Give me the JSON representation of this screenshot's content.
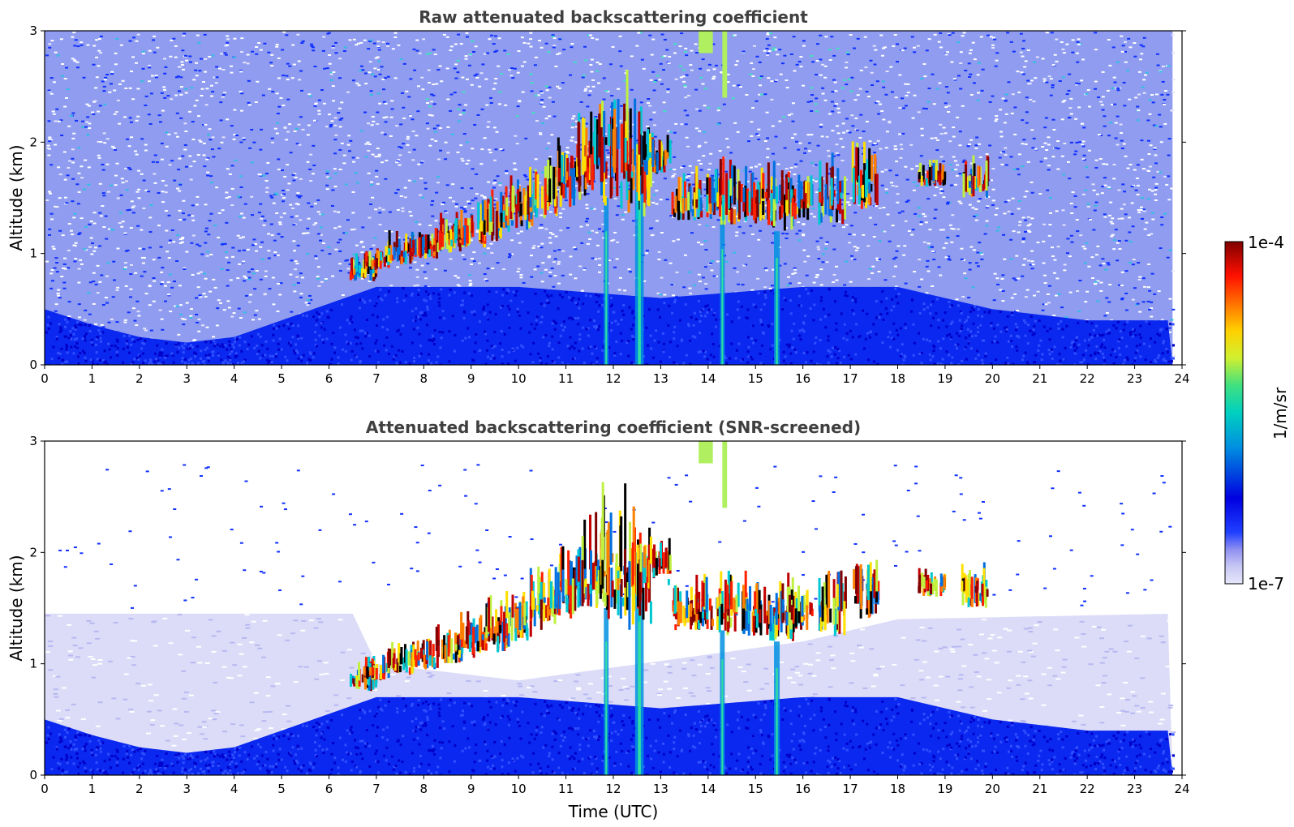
{
  "chart_data": [
    {
      "type": "heatmap",
      "title": "Raw attenuated backscattering coefficient",
      "xlabel": "",
      "ylabel": "Altitude (km)",
      "xlim": [
        0,
        24
      ],
      "ylim": [
        0,
        3
      ],
      "x_ticks": [
        0,
        1,
        2,
        3,
        4,
        5,
        6,
        7,
        8,
        9,
        10,
        11,
        12,
        13,
        14,
        15,
        16,
        17,
        18,
        19,
        20,
        21,
        22,
        23,
        24
      ],
      "y_ticks": [
        0,
        1,
        2,
        3
      ],
      "x_data_end": 23.8,
      "noise": true,
      "boundary_layer": [
        [
          0,
          0.5
        ],
        [
          1,
          0.36
        ],
        [
          2,
          0.25
        ],
        [
          3,
          0.2
        ],
        [
          4,
          0.25
        ],
        [
          5,
          0.4
        ],
        [
          6,
          0.55
        ],
        [
          7,
          0.7
        ],
        [
          10,
          0.7
        ],
        [
          13,
          0.6
        ],
        [
          16,
          0.7
        ],
        [
          18,
          0.7
        ],
        [
          20,
          0.5
        ],
        [
          22,
          0.4
        ],
        [
          23.8,
          0.4
        ]
      ],
      "cloud_layer": [
        {
          "x": 6.7,
          "base": 0.75,
          "top": 0.95
        },
        {
          "x": 7.0,
          "base": 0.85,
          "top": 1.05
        },
        {
          "x": 7.5,
          "base": 0.9,
          "top": 1.15
        },
        {
          "x": 8.0,
          "base": 0.95,
          "top": 1.2
        },
        {
          "x": 8.5,
          "base": 1.0,
          "top": 1.3
        },
        {
          "x": 9.0,
          "base": 1.05,
          "top": 1.4
        },
        {
          "x": 9.5,
          "base": 1.1,
          "top": 1.55
        },
        {
          "x": 10.0,
          "base": 1.2,
          "top": 1.65
        },
        {
          "x": 10.5,
          "base": 1.3,
          "top": 1.8
        },
        {
          "x": 11.0,
          "base": 1.4,
          "top": 2.0
        },
        {
          "x": 11.5,
          "base": 1.5,
          "top": 2.3
        },
        {
          "x": 12.0,
          "base": 1.4,
          "top": 2.55
        },
        {
          "x": 12.5,
          "base": 1.3,
          "top": 2.35
        },
        {
          "x": 12.9,
          "base": 1.7,
          "top": 2.1
        },
        {
          "x": 13.5,
          "base": 1.3,
          "top": 1.65
        },
        {
          "x": 14.0,
          "base": 1.3,
          "top": 1.8
        },
        {
          "x": 14.5,
          "base": 1.25,
          "top": 1.8
        },
        {
          "x": 15.0,
          "base": 1.25,
          "top": 1.75
        },
        {
          "x": 15.5,
          "base": 1.2,
          "top": 1.75
        },
        {
          "x": 15.9,
          "base": 1.3,
          "top": 1.7
        },
        {
          "x": 16.6,
          "base": 1.25,
          "top": 1.85
        },
        {
          "x": 17.3,
          "base": 1.4,
          "top": 1.95
        },
        {
          "x": 18.7,
          "base": 1.6,
          "top": 1.8
        },
        {
          "x": 19.6,
          "base": 1.5,
          "top": 1.85
        }
      ],
      "precip_streaks": [
        {
          "x": 12.55,
          "top": 2.0,
          "width": 0.18
        },
        {
          "x": 11.85,
          "top": 1.5,
          "width": 0.1
        },
        {
          "x": 14.3,
          "top": 1.3,
          "width": 0.1
        },
        {
          "x": 15.45,
          "top": 1.2,
          "width": 0.12
        }
      ],
      "high_patches": [
        {
          "x0": 13.8,
          "x1": 14.1,
          "y0": 2.8,
          "y1": 3.0
        },
        {
          "x0": 14.3,
          "x1": 14.4,
          "y0": 2.4,
          "y1": 3.0
        }
      ],
      "colorbar": {
        "label": "1/m/sr",
        "min_label": "1e-7",
        "max_label": "1e-4",
        "scale": "log"
      }
    },
    {
      "type": "heatmap",
      "title": "Attenuated backscattering coefficient (SNR-screened)",
      "xlabel": "Time (UTC)",
      "ylabel": "Altitude (km)",
      "xlim": [
        0,
        24
      ],
      "ylim": [
        0,
        3
      ],
      "x_ticks": [
        0,
        1,
        2,
        3,
        4,
        5,
        6,
        7,
        8,
        9,
        10,
        11,
        12,
        13,
        14,
        15,
        16,
        17,
        18,
        19,
        20,
        21,
        22,
        23,
        24
      ],
      "y_ticks": [
        0,
        1,
        2,
        3
      ],
      "x_data_end": 23.8,
      "noise": false,
      "boundary_layer": [
        [
          0,
          0.5
        ],
        [
          1,
          0.36
        ],
        [
          2,
          0.25
        ],
        [
          3,
          0.2
        ],
        [
          4,
          0.25
        ],
        [
          5,
          0.4
        ],
        [
          6,
          0.55
        ],
        [
          7,
          0.7
        ],
        [
          10,
          0.7
        ],
        [
          13,
          0.6
        ],
        [
          16,
          0.7
        ],
        [
          18,
          0.7
        ],
        [
          20,
          0.5
        ],
        [
          22,
          0.4
        ],
        [
          23.8,
          0.4
        ]
      ],
      "residual_layer_top": [
        [
          0,
          1.45
        ],
        [
          6.5,
          1.45
        ],
        [
          7,
          1.0
        ],
        [
          10,
          0.85
        ],
        [
          16,
          1.2
        ],
        [
          18,
          1.4
        ],
        [
          23.8,
          1.45
        ]
      ],
      "cloud_layer": [
        {
          "x": 6.7,
          "base": 0.75,
          "top": 0.95
        },
        {
          "x": 7.0,
          "base": 0.85,
          "top": 1.05
        },
        {
          "x": 7.5,
          "base": 0.9,
          "top": 1.15
        },
        {
          "x": 8.0,
          "base": 0.95,
          "top": 1.2
        },
        {
          "x": 8.5,
          "base": 1.0,
          "top": 1.3
        },
        {
          "x": 9.0,
          "base": 1.05,
          "top": 1.4
        },
        {
          "x": 9.5,
          "base": 1.1,
          "top": 1.55
        },
        {
          "x": 10.0,
          "base": 1.2,
          "top": 1.65
        },
        {
          "x": 10.5,
          "base": 1.3,
          "top": 1.8
        },
        {
          "x": 11.0,
          "base": 1.4,
          "top": 2.0
        },
        {
          "x": 11.5,
          "base": 1.5,
          "top": 2.3
        },
        {
          "x": 12.0,
          "base": 1.4,
          "top": 2.55
        },
        {
          "x": 12.5,
          "base": 1.3,
          "top": 2.35
        },
        {
          "x": 12.9,
          "base": 1.7,
          "top": 2.1
        },
        {
          "x": 13.5,
          "base": 1.3,
          "top": 1.65
        },
        {
          "x": 14.0,
          "base": 1.3,
          "top": 1.8
        },
        {
          "x": 14.5,
          "base": 1.25,
          "top": 1.8
        },
        {
          "x": 15.0,
          "base": 1.25,
          "top": 1.75
        },
        {
          "x": 15.5,
          "base": 1.2,
          "top": 1.75
        },
        {
          "x": 15.9,
          "base": 1.3,
          "top": 1.7
        },
        {
          "x": 16.6,
          "base": 1.25,
          "top": 1.85
        },
        {
          "x": 17.3,
          "base": 1.4,
          "top": 1.95
        },
        {
          "x": 18.7,
          "base": 1.6,
          "top": 1.8
        },
        {
          "x": 19.6,
          "base": 1.5,
          "top": 1.85
        }
      ],
      "precip_streaks": [
        {
          "x": 12.55,
          "top": 2.0,
          "width": 0.18
        },
        {
          "x": 11.85,
          "top": 1.5,
          "width": 0.1
        },
        {
          "x": 14.3,
          "top": 1.3,
          "width": 0.1
        },
        {
          "x": 15.45,
          "top": 1.2,
          "width": 0.12
        }
      ],
      "high_patches": [
        {
          "x0": 13.8,
          "x1": 14.1,
          "y0": 2.8,
          "y1": 3.0
        },
        {
          "x0": 14.3,
          "x1": 14.4,
          "y0": 2.4,
          "y1": 3.0
        }
      ],
      "colorbar": {
        "label": "1/m/sr",
        "min_label": "1e-7",
        "max_label": "1e-4",
        "scale": "log"
      }
    }
  ],
  "colors": {
    "colormap": [
      "#e6e6fa",
      "#b0b0f5",
      "#7f7ff0",
      "#0a28ff",
      "#0000d2",
      "#0070e0",
      "#00c8d0",
      "#30e090",
      "#c0f040",
      "#ffe000",
      "#ff8000",
      "#ff2000",
      "#c00000",
      "#800000"
    ]
  },
  "colorbar_label": "1/m/sr",
  "colorbar_min": "1e-7",
  "colorbar_max": "1e-4"
}
